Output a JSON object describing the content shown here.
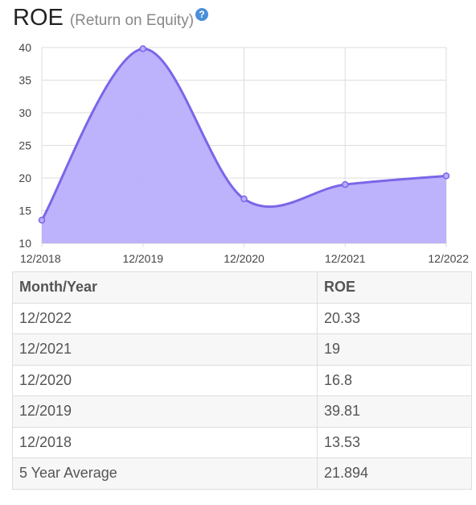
{
  "header": {
    "title": "ROE",
    "subtitle": "(Return on Equity)",
    "help_glyph": "?"
  },
  "colors": {
    "line": "#7a66e8",
    "fill": "#b9aefc",
    "grid": "#dddddd",
    "help": "#4a90d9"
  },
  "chart_data": {
    "type": "area",
    "categories": [
      "12/2018",
      "12/2019",
      "12/2020",
      "12/2021",
      "12/2022"
    ],
    "series": [
      {
        "values": [
          13.53,
          39.81,
          16.8,
          19,
          20.33
        ]
      }
    ],
    "yticks": [
      10,
      15,
      20,
      25,
      30,
      35,
      40
    ],
    "ylim": [
      10,
      40
    ],
    "smooth": true,
    "grid": true
  },
  "table": {
    "headers": [
      "Month/Year",
      "ROE"
    ],
    "rows": [
      [
        "12/2022",
        "20.33"
      ],
      [
        "12/2021",
        "19"
      ],
      [
        "12/2020",
        "16.8"
      ],
      [
        "12/2019",
        "39.81"
      ],
      [
        "12/2018",
        "13.53"
      ],
      [
        "5 Year Average",
        "21.894"
      ]
    ]
  }
}
